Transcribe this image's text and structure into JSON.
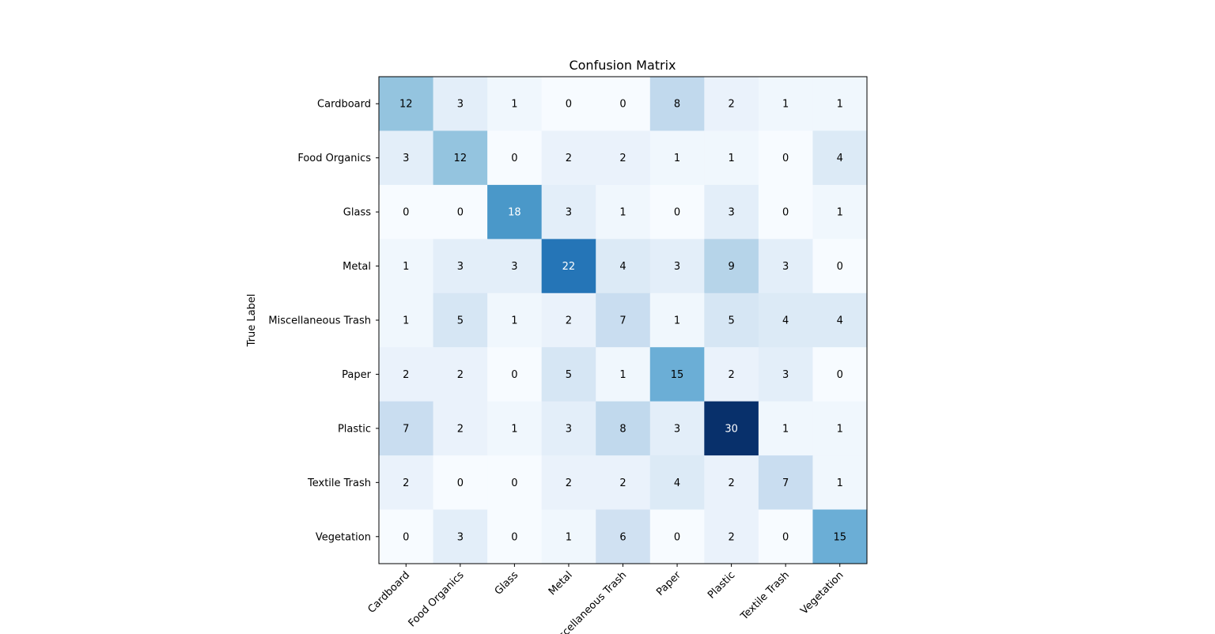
{
  "chart_data": {
    "type": "heatmap",
    "title": "Confusion Matrix",
    "ylabel": "True Label",
    "xlabel": "",
    "colormap": "Blues",
    "value_range": [
      0,
      30
    ],
    "row_labels": [
      "Cardboard",
      "Food Organics",
      "Glass",
      "Metal",
      "Miscellaneous Trash",
      "Paper",
      "Plastic",
      "Textile Trash",
      "Vegetation"
    ],
    "col_labels": [
      "Cardboard",
      "Food Organics",
      "Glass",
      "Metal",
      "Miscellaneous Trash",
      "Paper",
      "Plastic",
      "Textile Trash",
      "Vegetation"
    ],
    "matrix": [
      [
        12,
        3,
        1,
        0,
        0,
        8,
        2,
        1,
        1
      ],
      [
        3,
        12,
        0,
        2,
        2,
        1,
        1,
        0,
        4
      ],
      [
        0,
        0,
        18,
        3,
        1,
        0,
        3,
        0,
        1
      ],
      [
        1,
        3,
        3,
        22,
        4,
        3,
        9,
        3,
        0
      ],
      [
        1,
        5,
        1,
        2,
        7,
        1,
        5,
        4,
        4
      ],
      [
        2,
        2,
        0,
        5,
        1,
        15,
        2,
        3,
        0
      ],
      [
        7,
        2,
        1,
        3,
        8,
        3,
        30,
        1,
        1
      ],
      [
        2,
        0,
        0,
        2,
        2,
        4,
        2,
        7,
        1
      ],
      [
        0,
        3,
        0,
        1,
        6,
        0,
        2,
        0,
        15
      ]
    ]
  }
}
